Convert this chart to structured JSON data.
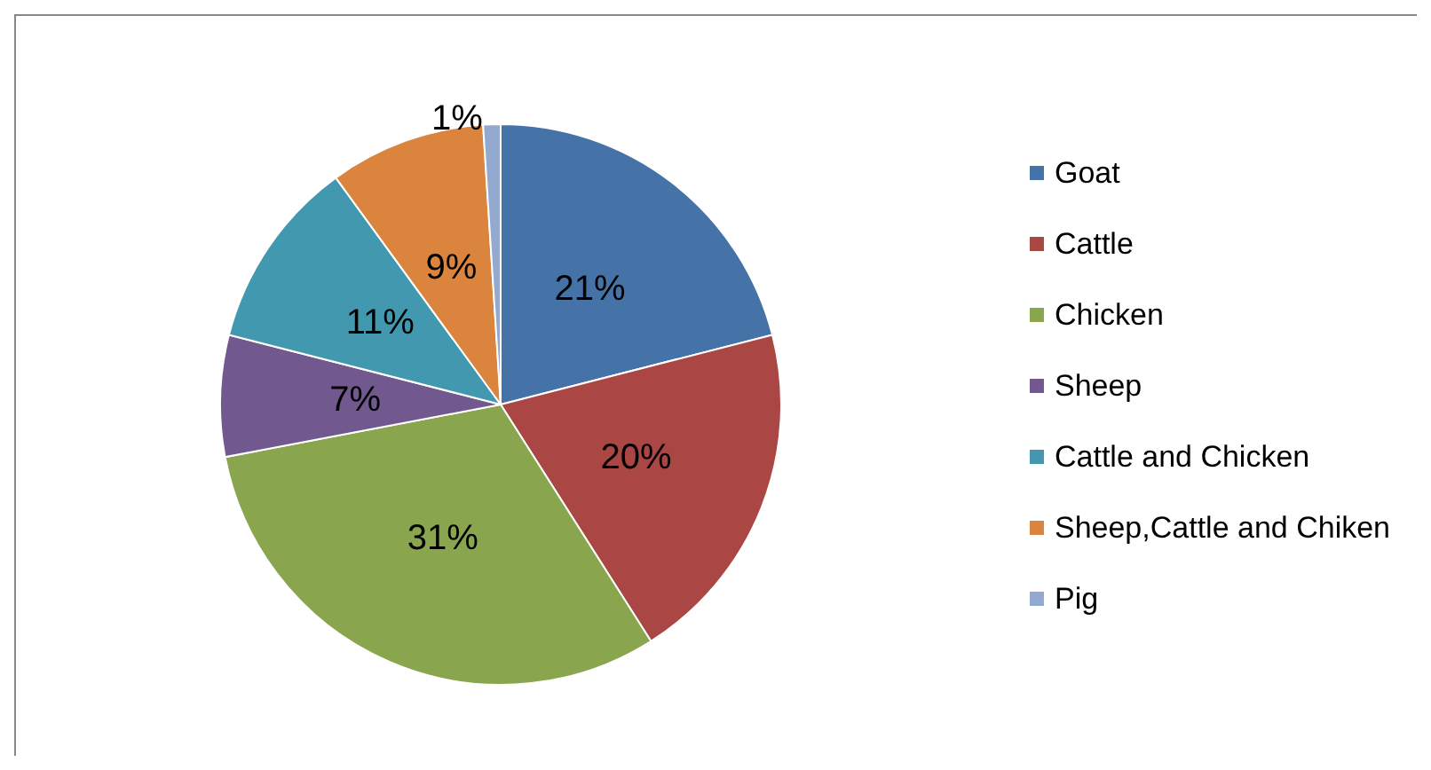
{
  "chart_data": {
    "type": "pie",
    "categories": [
      "Goat",
      "Cattle",
      "Chicken",
      "Sheep",
      "Cattle and Chicken",
      "Sheep,Cattle and Chiken",
      "Pig"
    ],
    "values": [
      21,
      20,
      31,
      7,
      11,
      9,
      1
    ],
    "colors": [
      "#4572a7",
      "#aa4643",
      "#89a54e",
      "#71588f",
      "#4198af",
      "#db843d",
      "#93a9cf"
    ],
    "value_labels": [
      "21%",
      "20%",
      "31%",
      "7%",
      "11%",
      "9%",
      "1%"
    ],
    "legend": "right"
  }
}
